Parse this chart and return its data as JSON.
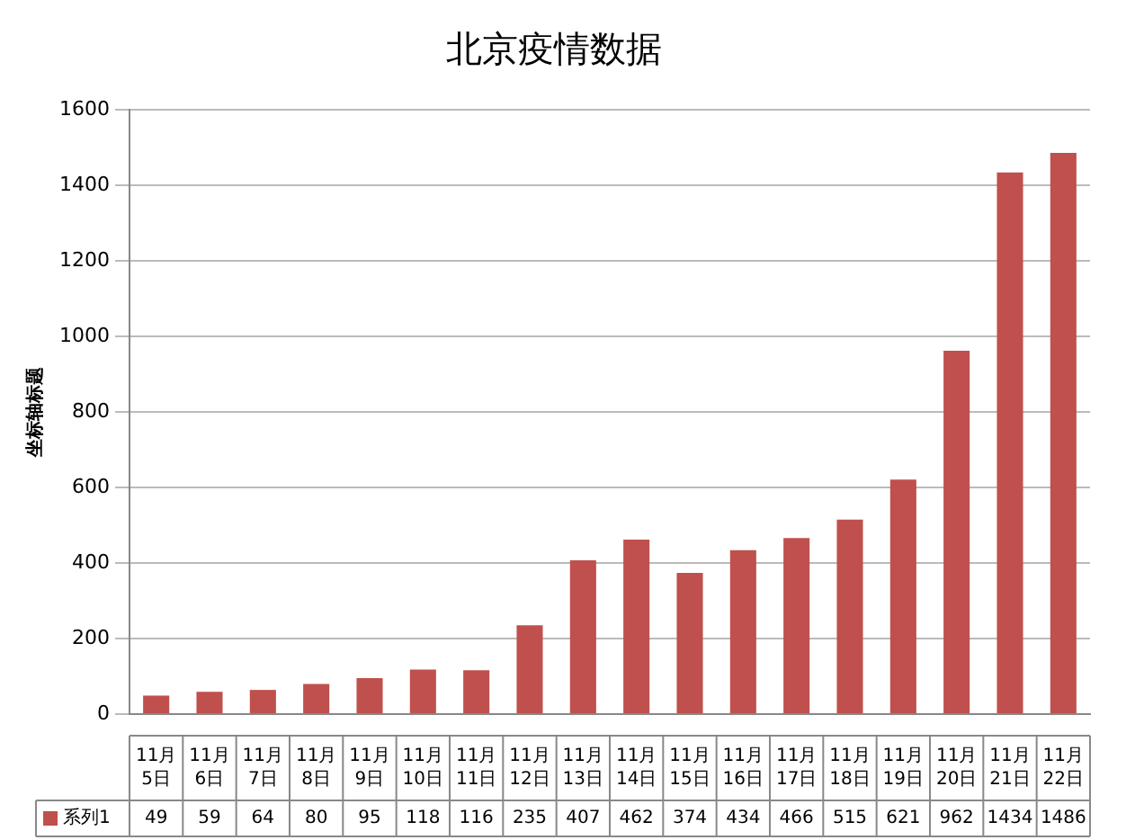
{
  "chart_data": {
    "type": "bar",
    "title": "北京疫情数据",
    "ylabel": "坐标轴标题",
    "categories": [
      "11月5日",
      "11月6日",
      "11月7日",
      "11月8日",
      "11月9日",
      "11月10日",
      "11月11日",
      "11月12日",
      "11月13日",
      "11月14日",
      "11月15日",
      "11月16日",
      "11月17日",
      "11月18日",
      "11月19日",
      "11月20日",
      "11月21日",
      "11月22日"
    ],
    "series": [
      {
        "name": "系列1",
        "color": "#c0504d",
        "values": [
          49,
          59,
          64,
          80,
          95,
          118,
          116,
          235,
          407,
          462,
          374,
          434,
          466,
          515,
          621,
          962,
          1434,
          1486
        ]
      }
    ],
    "ylim": [
      0,
      1600
    ],
    "yticks": [
      0,
      200,
      400,
      600,
      800,
      1000,
      1200,
      1400,
      1600
    ],
    "grid": "y",
    "data_labels": true
  }
}
